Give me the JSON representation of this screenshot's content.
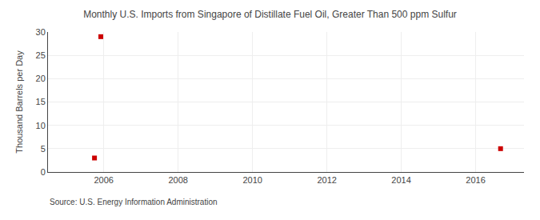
{
  "chart_data": {
    "type": "scatter",
    "title": "Monthly U.S. Imports from Singapore of Distillate Fuel Oil, Greater Than 500 ppm Sulfur",
    "ylabel": "Thousand Barrels per Day",
    "source": "Source: U.S. Energy Information Administration",
    "x": [
      2005.75,
      2005.92,
      2016.67
    ],
    "values": [
      3.0,
      29.0,
      5.0
    ],
    "color": "#cc0000",
    "marker": "square",
    "xlim": [
      2004.5,
      2017.3
    ],
    "ylim": [
      0,
      30
    ],
    "xticks": [
      2006,
      2008,
      2010,
      2012,
      2014,
      2016
    ],
    "yticks": [
      0,
      5,
      10,
      15,
      20,
      25,
      30
    ],
    "grid": true
  }
}
